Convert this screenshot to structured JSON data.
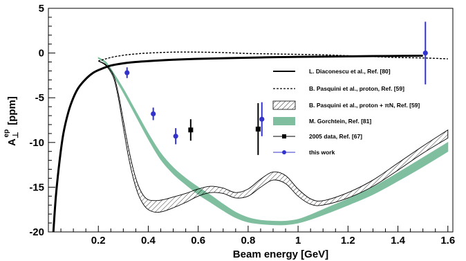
{
  "chart_data": {
    "type": "line",
    "xlabel": "Beam energy [GeV]",
    "ylabel_main": "A",
    "ylabel_sub": "⊥",
    "ylabel_sup": "ep",
    "ylabel_unit": "[ppm]",
    "xlim": [
      0.0,
      1.62
    ],
    "ylim": [
      -20,
      5
    ],
    "x_ticks": [
      {
        "value": 0.2,
        "label": "0.2"
      },
      {
        "value": 0.4,
        "label": "0.4"
      },
      {
        "value": 0.6,
        "label": "0.6"
      },
      {
        "value": 0.8,
        "label": "0.8"
      },
      {
        "value": 1.0,
        "label": "1"
      },
      {
        "value": 1.2,
        "label": "1.2"
      },
      {
        "value": 1.4,
        "label": "1.4"
      },
      {
        "value": 1.6,
        "label": "1.6"
      }
    ],
    "y_ticks": [
      {
        "value": 5,
        "label": "5"
      },
      {
        "value": 0,
        "label": "0"
      },
      {
        "value": -5,
        "label": "-5"
      },
      {
        "value": -10,
        "label": "-10"
      },
      {
        "value": -15,
        "label": "-15"
      },
      {
        "value": -20,
        "label": "-20"
      }
    ],
    "legend_position": "right",
    "series": [
      {
        "name": "L. Diaconescu et al., Ref. [80]",
        "style": "solid-thick",
        "color": "#000000",
        "x": [
          0.02,
          0.03,
          0.045,
          0.06,
          0.08,
          0.1,
          0.12,
          0.15,
          0.18,
          0.21,
          0.25,
          0.3,
          0.35,
          0.4,
          0.5,
          0.6,
          0.7,
          0.8,
          0.9,
          1.0,
          1.1,
          1.2,
          1.3,
          1.4,
          1.5
        ],
        "y": [
          -20,
          -16,
          -12,
          -9,
          -6.6,
          -5.0,
          -3.9,
          -2.9,
          -2.2,
          -1.8,
          -1.4,
          -1.15,
          -1.0,
          -0.9,
          -0.75,
          -0.65,
          -0.58,
          -0.52,
          -0.47,
          -0.43,
          -0.4,
          -0.37,
          -0.34,
          -0.32,
          -0.3
        ]
      },
      {
        "name": "B. Pasquini et al., proton, Ref. [59]",
        "style": "dashed",
        "color": "#000000",
        "x": [
          0.2,
          0.25,
          0.3,
          0.35,
          0.4,
          0.5,
          0.6,
          0.7,
          0.8,
          0.9,
          1.0,
          1.1,
          1.2,
          1.3,
          1.4,
          1.5,
          1.6
        ],
        "y": [
          -0.9,
          -0.5,
          -0.25,
          -0.1,
          0.0,
          0.1,
          0.1,
          0.05,
          -0.05,
          -0.1,
          -0.15,
          -0.2,
          -0.3,
          -0.4,
          -0.5,
          -0.55,
          -0.65
        ]
      },
      {
        "name": "B. Pasquini et al., proton + πN, Ref. [59]",
        "style": "hatched-band",
        "color": "#000000",
        "x": [
          0.2,
          0.23,
          0.26,
          0.28,
          0.3,
          0.32,
          0.34,
          0.36,
          0.38,
          0.4,
          0.43,
          0.46,
          0.5,
          0.55,
          0.6,
          0.65,
          0.7,
          0.75,
          0.8,
          0.85,
          0.9,
          0.95,
          1.0,
          1.05,
          1.1,
          1.2,
          1.3,
          1.4,
          1.5,
          1.6
        ],
        "y_upper": [
          -0.9,
          -1.3,
          -2.4,
          -4.5,
          -7.5,
          -10.5,
          -13.0,
          -14.8,
          -15.9,
          -16.4,
          -16.5,
          -16.4,
          -16.1,
          -15.7,
          -15.2,
          -14.9,
          -15.1,
          -15.6,
          -15.2,
          -14.1,
          -13.3,
          -13.7,
          -15.2,
          -16.3,
          -16.5,
          -15.6,
          -14.2,
          -12.3,
          -10.4,
          -8.6
        ],
        "y_lower": [
          -0.9,
          -1.4,
          -2.7,
          -5.0,
          -8.3,
          -11.5,
          -14.0,
          -15.8,
          -16.9,
          -17.5,
          -17.8,
          -17.7,
          -17.3,
          -16.7,
          -16.0,
          -15.6,
          -15.7,
          -16.2,
          -16.0,
          -15.0,
          -14.2,
          -14.6,
          -16.0,
          -16.9,
          -17.0,
          -16.2,
          -14.9,
          -13.1,
          -11.2,
          -9.5
        ]
      },
      {
        "name": "M. Gorchtein, Ref. [81]",
        "style": "filled-band",
        "color": "#7fbf9f",
        "x": [
          0.2,
          0.23,
          0.26,
          0.3,
          0.35,
          0.4,
          0.45,
          0.5,
          0.55,
          0.6,
          0.65,
          0.7,
          0.75,
          0.8,
          0.85,
          0.9,
          0.95,
          1.0,
          1.05,
          1.1,
          1.2,
          1.3,
          1.4,
          1.5,
          1.6
        ],
        "y_upper": [
          -0.5,
          -1.0,
          -2.2,
          -4.0,
          -6.5,
          -9.0,
          -11.2,
          -12.8,
          -14.0,
          -15.0,
          -15.9,
          -16.9,
          -17.8,
          -18.4,
          -18.7,
          -18.8,
          -18.8,
          -18.6,
          -18.1,
          -17.5,
          -16.3,
          -15.0,
          -13.4,
          -11.7,
          -10.0
        ],
        "y_lower": [
          -0.6,
          -1.2,
          -2.5,
          -4.4,
          -7.0,
          -9.6,
          -11.9,
          -13.5,
          -14.7,
          -15.8,
          -16.7,
          -17.6,
          -18.4,
          -18.9,
          -19.1,
          -19.2,
          -19.2,
          -19.0,
          -18.6,
          -18.1,
          -17.0,
          -15.8,
          -14.3,
          -12.7,
          -11.0
        ]
      },
      {
        "name": "2005 data, Ref. [67]",
        "style": "markers-square",
        "color": "#000000",
        "points": [
          {
            "x": 0.57,
            "y": -8.6,
            "err": 1.2
          },
          {
            "x": 0.84,
            "y": -8.5,
            "err": 2.9
          }
        ]
      },
      {
        "name": "this work",
        "style": "markers-circle",
        "color": "#3333cc",
        "points": [
          {
            "x": 0.315,
            "y": -2.2,
            "err": 0.6
          },
          {
            "x": 0.42,
            "y": -6.8,
            "err": 0.7
          },
          {
            "x": 0.51,
            "y": -9.3,
            "err": 0.9
          },
          {
            "x": 0.855,
            "y": -7.4,
            "err": 1.9
          },
          {
            "x": 1.51,
            "y": 0.0,
            "err": 3.5
          }
        ]
      }
    ]
  }
}
